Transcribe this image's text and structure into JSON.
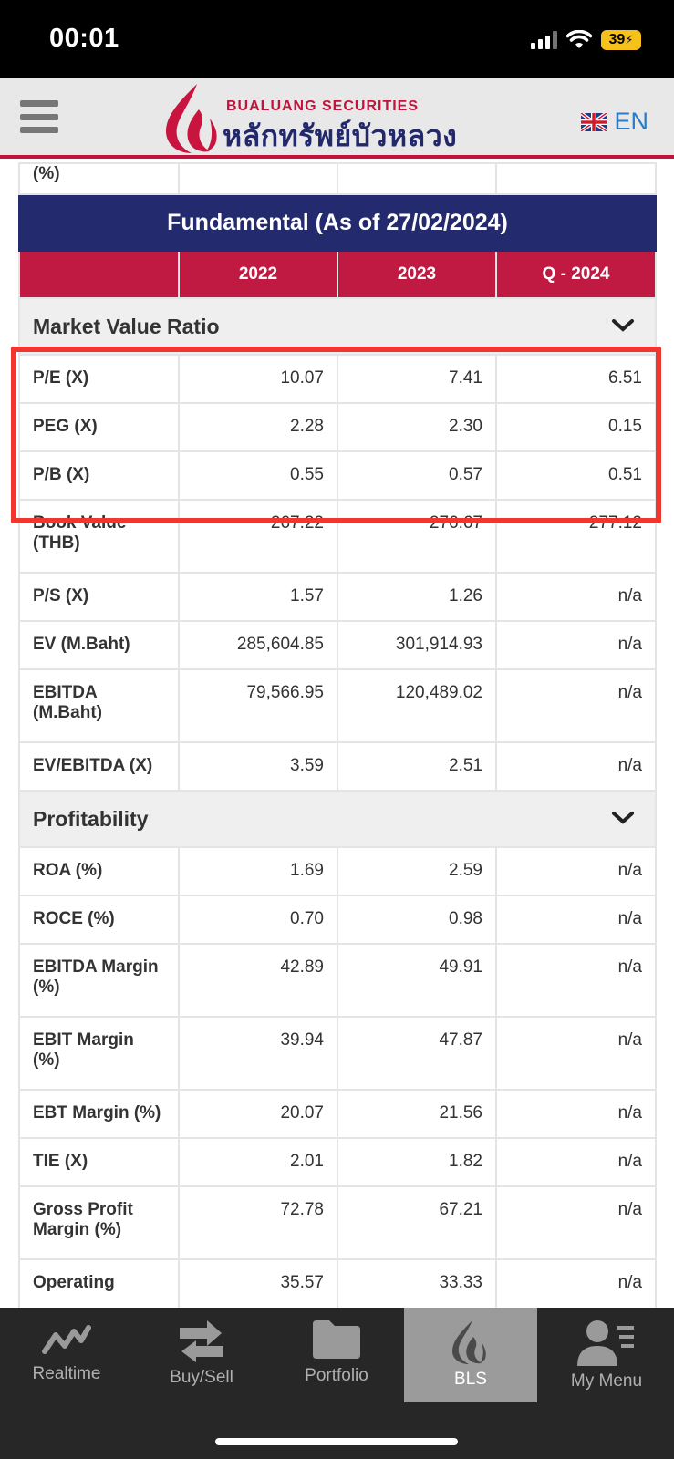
{
  "status": {
    "time": "00:01",
    "battery": "39"
  },
  "header": {
    "logo_en": "BUALUANG SECURITIES",
    "logo_th": "หลักทรัพย์บัวหลวง",
    "lang": "EN"
  },
  "stub_label": "(%)",
  "table": {
    "title": "Fundamental (As of 27/02/2024)",
    "years": [
      "2022",
      "2023",
      "Q - 2024"
    ]
  },
  "market_value": {
    "title": "Market Value Ratio",
    "rows": [
      {
        "label": "P/E (X)",
        "v2022": "10.07",
        "v2023": "7.41",
        "vq": "6.51"
      },
      {
        "label": "PEG (X)",
        "v2022": "2.28",
        "v2023": "2.30",
        "vq": "0.15"
      },
      {
        "label": "P/B (X)",
        "v2022": "0.55",
        "v2023": "0.57",
        "vq": "0.51"
      },
      {
        "label": "Book Value (THB)",
        "v2022": "267.22",
        "v2023": "276.67",
        "vq": "277.12"
      },
      {
        "label": "P/S (X)",
        "v2022": "1.57",
        "v2023": "1.26",
        "vq": "n/a"
      },
      {
        "label": "EV (M.Baht)",
        "v2022": "285,604.85",
        "v2023": "301,914.93",
        "vq": "n/a"
      },
      {
        "label": "EBITDA (M.Baht)",
        "v2022": "79,566.95",
        "v2023": "120,489.02",
        "vq": "n/a"
      },
      {
        "label": "EV/EBITDA (X)",
        "v2022": "3.59",
        "v2023": "2.51",
        "vq": "n/a"
      }
    ]
  },
  "profitability": {
    "title": "Profitability",
    "rows": [
      {
        "label": "ROA (%)",
        "v2022": "1.69",
        "v2023": "2.59",
        "vq": "n/a"
      },
      {
        "label": "ROCE (%)",
        "v2022": "0.70",
        "v2023": "0.98",
        "vq": "n/a"
      },
      {
        "label": "EBITDA Margin (%)",
        "v2022": "42.89",
        "v2023": "49.91",
        "vq": "n/a"
      },
      {
        "label": "EBIT Margin (%)",
        "v2022": "39.94",
        "v2023": "47.87",
        "vq": "n/a"
      },
      {
        "label": "EBT Margin (%)",
        "v2022": "20.07",
        "v2023": "21.56",
        "vq": "n/a"
      },
      {
        "label": "TIE (X)",
        "v2022": "2.01",
        "v2023": "1.82",
        "vq": "n/a"
      },
      {
        "label": "Gross Profit Margin (%)",
        "v2022": "72.78",
        "v2023": "67.21",
        "vq": "n/a"
      },
      {
        "label": "Operating",
        "v2022": "35.57",
        "v2023": "33.33",
        "vq": "n/a"
      }
    ]
  },
  "nav": [
    {
      "label": "Realtime",
      "icon": "chart-line-icon"
    },
    {
      "label": "Buy/Sell",
      "icon": "swap-arrows-icon"
    },
    {
      "label": "Portfolio",
      "icon": "folder-icon"
    },
    {
      "label": "BLS",
      "icon": "lotus-logo-icon"
    },
    {
      "label": "My Menu",
      "icon": "user-menu-icon"
    }
  ]
}
